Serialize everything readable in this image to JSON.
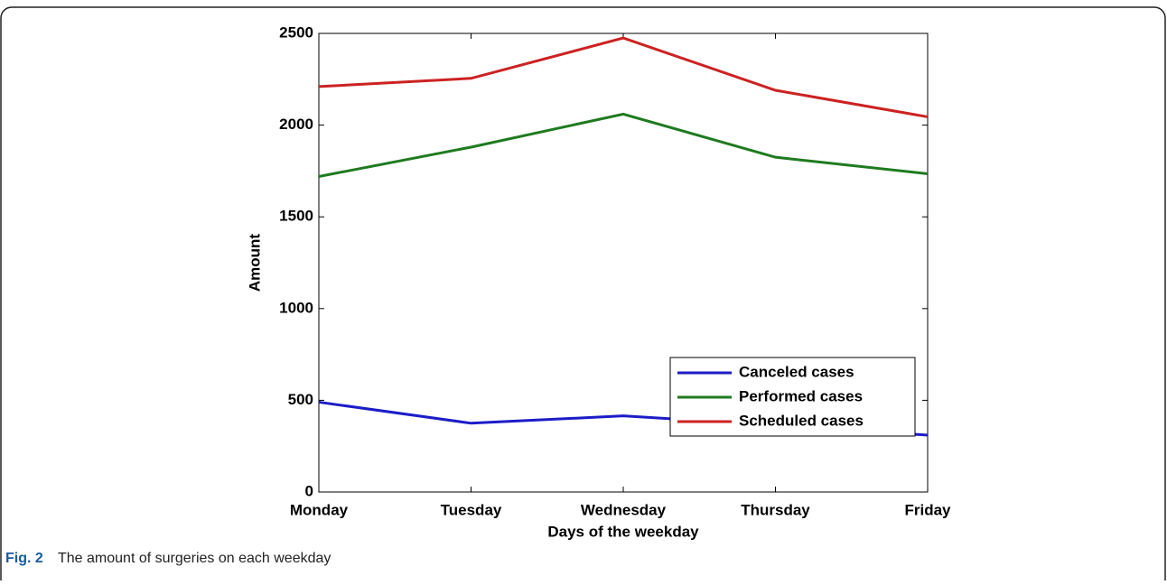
{
  "chart_data": {
    "type": "line",
    "x_label": "Days of the weekday",
    "y_label": "Amount",
    "categories": [
      "Monday",
      "Tuesday",
      "Wednesday",
      "Thursday",
      "Friday"
    ],
    "series": [
      {
        "name": "Canceled cases",
        "color": "#1c1cc8",
        "values": [
          490,
          375,
          415,
          365,
          310
        ]
      },
      {
        "name": "Performed cases",
        "color": "#1f7a1f",
        "values": [
          1720,
          1880,
          2060,
          1825,
          1735
        ]
      },
      {
        "name": "Scheduled cases",
        "color": "#cc2222",
        "values": [
          2210,
          2255,
          2475,
          2190,
          2045
        ]
      }
    ],
    "ylim": [
      0,
      2500
    ],
    "yticks": [
      0,
      500,
      1000,
      1500,
      2000,
      2500
    ],
    "legend": "lower right"
  },
  "caption_label": "Fig. 2",
  "caption": "The amount of surgeries on each weekday"
}
